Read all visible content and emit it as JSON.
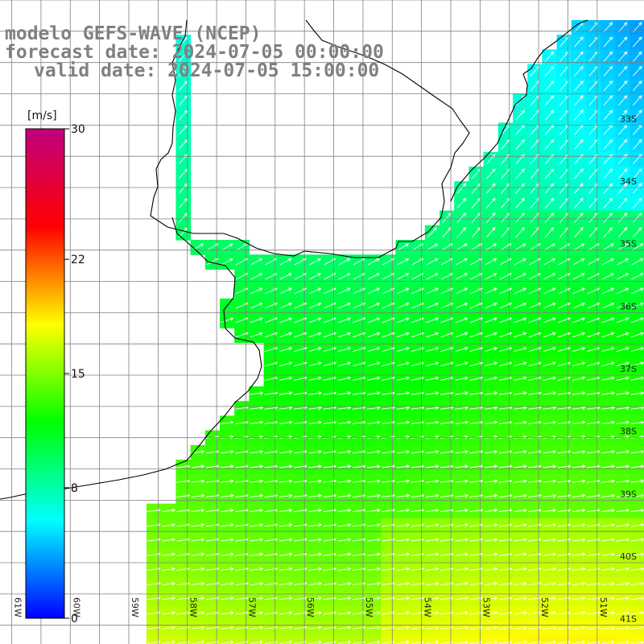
{
  "header": {
    "line1": "modelo GEFS-WAVE (NCEP)",
    "line2": "forecast date: 2024-07-05 00:00:00",
    "line3": "valid date: 2024-07-05 15:00:00"
  },
  "colorbar": {
    "unit": "[m/s]",
    "min": 0,
    "max": 30,
    "tick_values": [
      30,
      22,
      15,
      8,
      0
    ],
    "tick_labels": [
      "30",
      "22",
      "15",
      "8",
      "0"
    ],
    "stops": [
      "#0000ff",
      "#00ffff",
      "#00ff00",
      "#ffff00",
      "#ff0000",
      "#c0007f"
    ]
  },
  "map": {
    "lon_range": [
      -61.2,
      -50.2
    ],
    "lat_range": [
      -41.3,
      -31.0
    ],
    "lon_labels": [
      "61W",
      "60W",
      "59W",
      "58W",
      "57W",
      "56W",
      "55W",
      "54W",
      "53W",
      "52W",
      "51W"
    ],
    "lat_labels": [
      "33S",
      "34S",
      "35S",
      "36S",
      "37S",
      "38S",
      "39S",
      "40S",
      "41S"
    ],
    "coast_color": "#000000",
    "grid_color": "#808080",
    "arrow_color": "#ffffff"
  }
}
